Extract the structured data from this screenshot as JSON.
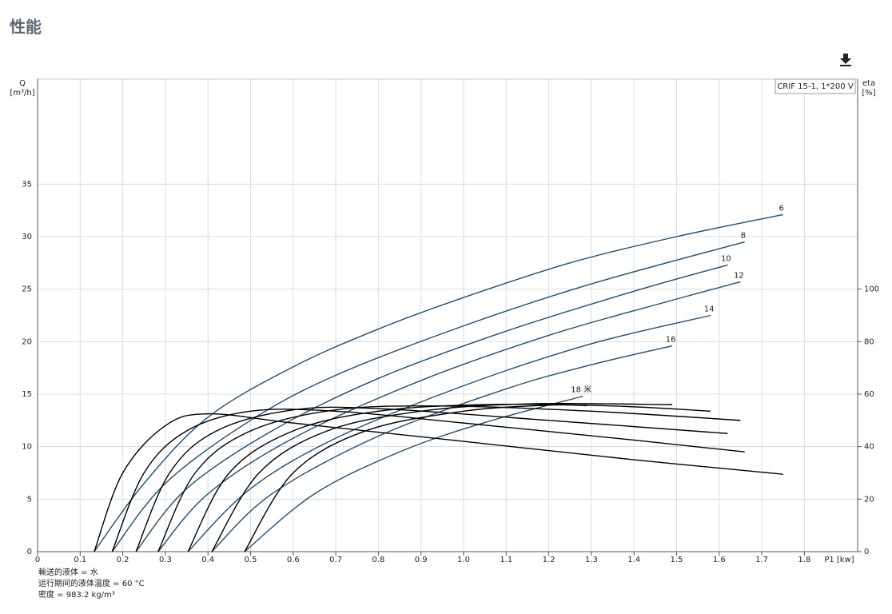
{
  "header": {
    "title": "性能"
  },
  "chart_data": {
    "type": "line",
    "legend_text": "CRIF 15-1, 1*200 V",
    "x_label": "P1 [kw]",
    "y_label": "Q",
    "y_unit": "[m³/h]",
    "y2_label": "eta",
    "y2_unit": "[%]",
    "xlim": [
      0,
      1.925
    ],
    "xticks": [
      0,
      0.1,
      0.2,
      0.3,
      0.4,
      0.5,
      0.6,
      0.7,
      0.8,
      0.9,
      {
        "value": 1,
        "label": "1.0"
      },
      1.1,
      1.2,
      1.3,
      1.4,
      1.5,
      1.6,
      1.7,
      1.8
    ],
    "ylim": [
      0,
      45
    ],
    "yticks": [
      0,
      5,
      10,
      15,
      20,
      25,
      30,
      35
    ],
    "y2lim": [
      0,
      180
    ],
    "y2ticks": [
      0,
      20,
      40,
      60,
      80,
      100
    ],
    "grid": true,
    "series": [
      {
        "name": "6",
        "color": "#1d4f73",
        "x": [
          0.133,
          0.25,
          0.4,
          0.6,
          0.8,
          1.0,
          1.25,
          1.5,
          1.75
        ],
        "values": [
          0,
          6.5,
          12.8,
          17.6,
          21.2,
          24.2,
          27.5,
          30.0,
          32.1
        ]
      },
      {
        "name": "8",
        "color": "#1d4f73",
        "x": [
          0.175,
          0.3,
          0.5,
          0.7,
          1.0,
          1.3,
          1.66
        ],
        "values": [
          0,
          6.5,
          12.5,
          16.8,
          21.5,
          25.5,
          29.5
        ]
      },
      {
        "name": "10",
        "color": "#1d4f73",
        "x": [
          0.231,
          0.35,
          0.55,
          0.8,
          1.1,
          1.4,
          1.62
        ],
        "values": [
          0,
          6,
          11.5,
          16.5,
          21,
          24.8,
          27.3
        ]
      },
      {
        "name": "12",
        "color": "#1d4f73",
        "x": [
          0.283,
          0.4,
          0.6,
          0.9,
          1.2,
          1.45,
          1.65
        ],
        "values": [
          0,
          5.5,
          10.8,
          16.3,
          20.6,
          23.5,
          25.7
        ]
      },
      {
        "name": "14",
        "color": "#1d4f73",
        "x": [
          0.353,
          0.5,
          0.7,
          1.0,
          1.3,
          1.58
        ],
        "values": [
          0,
          6,
          10.8,
          15.8,
          19.8,
          22.5
        ]
      },
      {
        "name": "16",
        "color": "#1d4f73",
        "x": [
          0.409,
          0.55,
          0.8,
          1.1,
          1.3,
          1.49
        ],
        "values": [
          0,
          5.5,
          11,
          15.5,
          17.8,
          19.6
        ]
      },
      {
        "name": "18 米",
        "color": "#1d4f73",
        "x": [
          0.486,
          0.65,
          0.85,
          1.05,
          1.28
        ],
        "values": [
          0,
          5.5,
          9.5,
          12.3,
          14.8
        ]
      },
      {
        "axis": "y2",
        "color": "#000000",
        "x": [
          0.133,
          0.2,
          0.3,
          0.4,
          0.6,
          1.0,
          1.4,
          1.75
        ],
        "values": [
          0,
          30,
          48,
          52.5,
          49,
          42,
          35,
          29.5
        ]
      },
      {
        "axis": "y2",
        "color": "#000000",
        "x": [
          0.175,
          0.25,
          0.35,
          0.5,
          0.7,
          1.0,
          1.4,
          1.66
        ],
        "values": [
          0,
          30,
          46,
          53.5,
          53.5,
          49,
          42.5,
          38
        ]
      },
      {
        "axis": "y2",
        "color": "#000000",
        "x": [
          0.231,
          0.31,
          0.42,
          0.6,
          0.8,
          1.2,
          1.62
        ],
        "values": [
          0,
          30,
          46,
          54,
          54.5,
          50,
          45
        ]
      },
      {
        "axis": "y2",
        "color": "#000000",
        "x": [
          0.283,
          0.37,
          0.5,
          0.7,
          0.95,
          1.3,
          1.65
        ],
        "values": [
          0,
          30,
          46,
          54,
          55.5,
          53.5,
          50
        ]
      },
      {
        "axis": "y2",
        "color": "#000000",
        "x": [
          0.353,
          0.45,
          0.6,
          0.8,
          1.05,
          1.35,
          1.58
        ],
        "values": [
          0,
          30,
          46,
          53.5,
          56,
          55.5,
          53.5
        ]
      },
      {
        "axis": "y2",
        "color": "#000000",
        "x": [
          0.409,
          0.52,
          0.68,
          0.9,
          1.15,
          1.49
        ],
        "values": [
          0,
          30,
          46,
          53.5,
          56.3,
          56
        ]
      },
      {
        "axis": "y2",
        "color": "#000000",
        "x": [
          0.486,
          0.6,
          0.77,
          1.0,
          1.2,
          1.29
        ],
        "values": [
          0,
          30,
          46,
          53.5,
          55.8,
          55.6
        ]
      }
    ]
  },
  "notes": [
    "輸送的液体 = 水",
    "运行期间的液体温度 = 60 °C",
    "密度 = 983.2 kg/m³"
  ]
}
